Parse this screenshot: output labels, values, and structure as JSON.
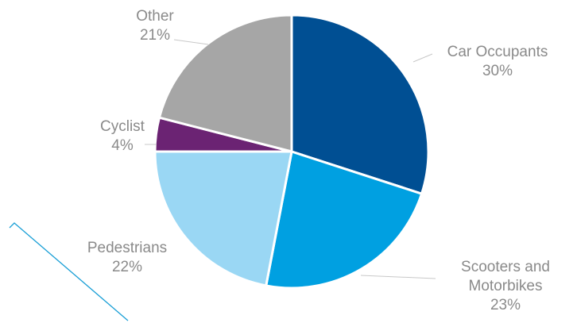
{
  "chart_data": {
    "type": "pie",
    "title": "",
    "start_angle_deg": 0,
    "direction": "clockwise",
    "slices": [
      {
        "label_lines": [
          "Car Occupants"
        ],
        "value": 30,
        "value_label": "30%",
        "color": "#004f93"
      },
      {
        "label_lines": [
          "Scooters and",
          "Motorbikes"
        ],
        "value": 23,
        "value_label": "23%",
        "color": "#00a0e1"
      },
      {
        "label_lines": [
          "Pedestrians"
        ],
        "value": 22,
        "value_label": "22%",
        "color": "#9ad7f4"
      },
      {
        "label_lines": [
          "Cyclist"
        ],
        "value": 4,
        "value_label": "4%",
        "color": "#6b2373"
      },
      {
        "label_lines": [
          "Other"
        ],
        "value": 21,
        "value_label": "21%",
        "color": "#a6a6a6"
      }
    ],
    "accent_line_color": "#1a9fd6",
    "leader_line_color": "#c8c8c8"
  }
}
